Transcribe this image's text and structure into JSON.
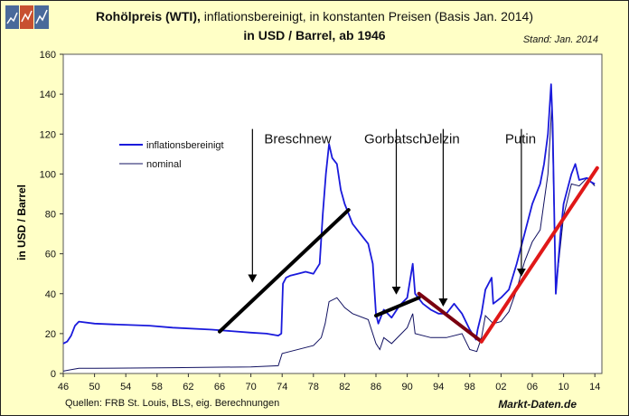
{
  "header": {
    "title_bold": "Rohölpreis (WTI),",
    "title_rest": "inflationsbereinigt, in konstanten Preisen (Basis Jan. 2014)",
    "subtitle": "in USD / Barrel, ab 1946",
    "stand": "Stand: Jan. 2014"
  },
  "footer": {
    "source": "Quellen: FRB St. Louis, BLS, eig. Berechnungen",
    "brand": "Markt-Daten.de"
  },
  "colors": {
    "background": "#ffffc6",
    "real": "#1a1adc",
    "nominal": "#101060",
    "trend_black": "#000000",
    "trend_darkred": "#7a0010",
    "trend_red": "#e01818"
  },
  "chart_data": {
    "type": "line",
    "ylabel": "in USD / Barrel",
    "ylim": [
      0,
      160
    ],
    "yticks": [
      0,
      20,
      40,
      60,
      80,
      100,
      120,
      140,
      160
    ],
    "xlim": [
      1946,
      2014.9
    ],
    "xticks": [
      1946,
      1950,
      1954,
      1958,
      1962,
      1966,
      1970,
      1974,
      1978,
      1982,
      1986,
      1990,
      1994,
      1998,
      2002,
      2006,
      2010,
      2014
    ],
    "xticklabels": [
      "46",
      "50",
      "54",
      "58",
      "62",
      "66",
      "70",
      "74",
      "78",
      "82",
      "86",
      "90",
      "94",
      "98",
      "02",
      "06",
      "10",
      "14"
    ],
    "grid": true,
    "legend_position": "upper-left",
    "series": [
      {
        "name": "inflationsbereinigt",
        "x": [
          1946,
          1946.5,
          1947,
          1947.5,
          1948,
          1950,
          1953,
          1957,
          1960,
          1965,
          1970,
          1972,
          1973.5,
          1973.9,
          1974.1,
          1974.5,
          1975,
          1976,
          1977,
          1978,
          1978.8,
          1979.2,
          1979.6,
          1980,
          1980.4,
          1981,
          1981.5,
          1982,
          1983,
          1984,
          1985,
          1985.6,
          1986,
          1986.3,
          1986.8,
          1987,
          1988,
          1989,
          1990,
          1990.7,
          1991,
          1992,
          1993,
          1994,
          1995,
          1996,
          1997,
          1998,
          1998.8,
          1999,
          1999.5,
          2000,
          2000.8,
          2001,
          2002,
          2003,
          2004,
          2005,
          2006,
          2007,
          2007.5,
          2008,
          2008.4,
          2008.6,
          2008.9,
          2009,
          2009.3,
          2009.6,
          2010,
          2011,
          2011.5,
          2012,
          2013,
          2013.5,
          2014
        ],
        "values": [
          15,
          16,
          19,
          24,
          26,
          25,
          24.5,
          24,
          23,
          22,
          20.5,
          20,
          19,
          20,
          45,
          48,
          49,
          50,
          51,
          50,
          55,
          80,
          100,
          115,
          108,
          105,
          92,
          85,
          75,
          70,
          65,
          55,
          30,
          25,
          30,
          32,
          28,
          34,
          38,
          55,
          40,
          35,
          32,
          30,
          30,
          35,
          30,
          22,
          17,
          22,
          30,
          42,
          48,
          35,
          38,
          42,
          55,
          70,
          85,
          95,
          105,
          120,
          145,
          125,
          60,
          40,
          55,
          70,
          85,
          100,
          105,
          97,
          98,
          96,
          95
        ]
      },
      {
        "name": "nominal",
        "x": [
          1946,
          1947,
          1948,
          1950,
          1960,
          1970,
          1973.5,
          1974,
          1975,
          1978,
          1979,
          1979.5,
          1980,
          1981,
          1982,
          1983,
          1985,
          1986,
          1986.5,
          1987,
          1988,
          1990,
          1990.7,
          1991,
          1993,
          1995,
          1997,
          1998,
          1998.9,
          1999.5,
          2000,
          2001,
          2002,
          2003,
          2004,
          2005,
          2006,
          2007,
          2008,
          2008.5,
          2008.9,
          2009,
          2010,
          2011,
          2012,
          2013,
          2014
        ],
        "values": [
          1.2,
          1.9,
          2.6,
          2.6,
          2.9,
          3.3,
          3.9,
          10,
          11,
          14,
          18,
          25,
          36,
          38,
          33,
          30,
          27,
          15,
          12,
          18,
          15,
          23,
          30,
          20,
          18,
          18,
          20,
          12,
          11,
          18,
          29,
          25,
          26,
          31,
          42,
          56,
          66,
          72,
          100,
          134,
          60,
          42,
          79,
          95,
          94,
          98,
          94
        ]
      }
    ],
    "trend_lines": [
      {
        "x": [
          1966,
          1982.5
        ],
        "values": [
          21,
          82
        ],
        "color": "#000000"
      },
      {
        "x": [
          1986,
          1991.5
        ],
        "values": [
          29,
          38
        ],
        "color": "#000000"
      },
      {
        "x": [
          1991.5,
          1999.5
        ],
        "values": [
          40,
          16
        ],
        "color": "#7a0010"
      },
      {
        "x": [
          1999.5,
          2014.3
        ],
        "values": [
          16,
          103
        ],
        "color": "#e01818"
      }
    ],
    "annotations": [
      {
        "text": "Breschnew",
        "x": 1976,
        "y": 118,
        "arrow_to": [
          1970.2,
          46
        ]
      },
      {
        "text": "Gorbatsch",
        "x": 1988.5,
        "y": 118,
        "arrow_to": [
          1988.6,
          40
        ]
      },
      {
        "text": "Jelzin",
        "x": 1994.5,
        "y": 118,
        "arrow_to": [
          1994.6,
          34
        ]
      },
      {
        "text": "Putin",
        "x": 2004.5,
        "y": 118,
        "arrow_to": [
          2004.6,
          49
        ]
      }
    ]
  }
}
